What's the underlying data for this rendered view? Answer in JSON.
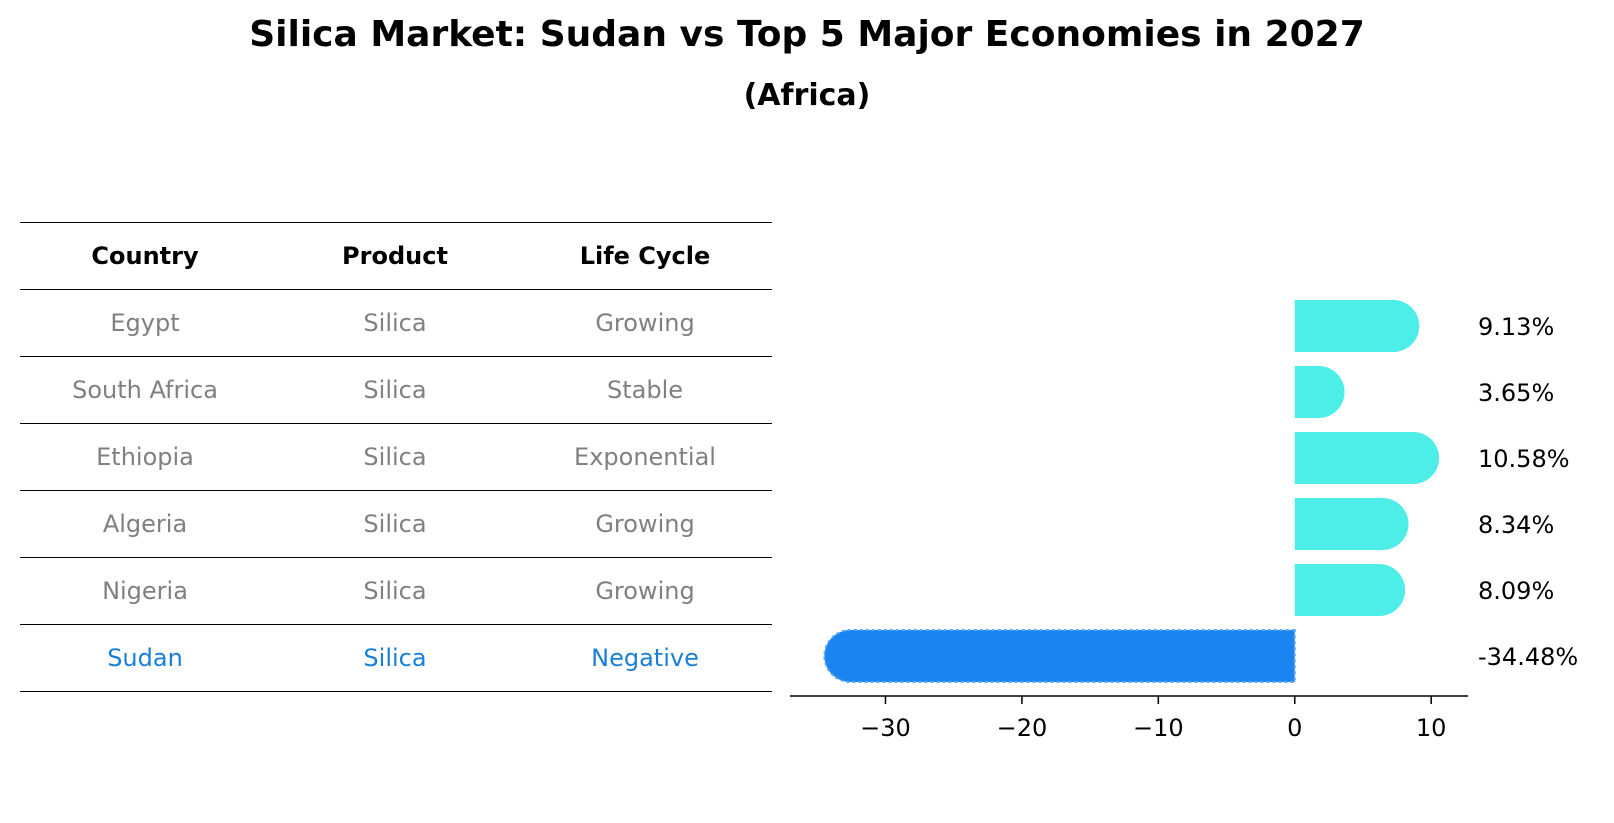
{
  "header": {
    "title": "Silica Market: Sudan vs Top 5 Major Economies in 2027",
    "subtitle": "(Africa)"
  },
  "table": {
    "columns": [
      "Country",
      "Product",
      "Life Cycle"
    ],
    "rows": [
      {
        "country": "Egypt",
        "product": "Silica",
        "life_cycle": "Growing"
      },
      {
        "country": "South Africa",
        "product": "Silica",
        "life_cycle": "Stable"
      },
      {
        "country": "Ethiopia",
        "product": "Silica",
        "life_cycle": "Exponential"
      },
      {
        "country": "Algeria",
        "product": "Silica",
        "life_cycle": "Growing"
      },
      {
        "country": "Nigeria",
        "product": "Silica",
        "life_cycle": "Growing"
      },
      {
        "country": "Sudan",
        "product": "Silica",
        "life_cycle": "Negative"
      }
    ]
  },
  "colors": {
    "positive": "#4dede8",
    "negative": "#1a84f0",
    "highlight_text": "#1a7fd9",
    "muted_text": "#808080"
  },
  "chart_data": {
    "type": "bar",
    "orientation": "horizontal",
    "title": "Silica Market: Sudan vs Top 5 Major Economies in 2027",
    "subtitle": "(Africa)",
    "categories": [
      "Egypt",
      "South Africa",
      "Ethiopia",
      "Algeria",
      "Nigeria",
      "Sudan"
    ],
    "values": [
      9.13,
      3.65,
      10.58,
      8.34,
      8.09,
      -34.48
    ],
    "value_labels": [
      "9.13%",
      "3.65%",
      "10.58%",
      "8.34%",
      "8.09%",
      "-34.48%"
    ],
    "xlim": [
      -37,
      12.7
    ],
    "xticks": [
      -30,
      -20,
      -10,
      0,
      10
    ],
    "xtick_labels": [
      "−30",
      "−20",
      "−10",
      "0",
      "10"
    ],
    "xlabel": "",
    "ylabel": "",
    "grid": false
  }
}
